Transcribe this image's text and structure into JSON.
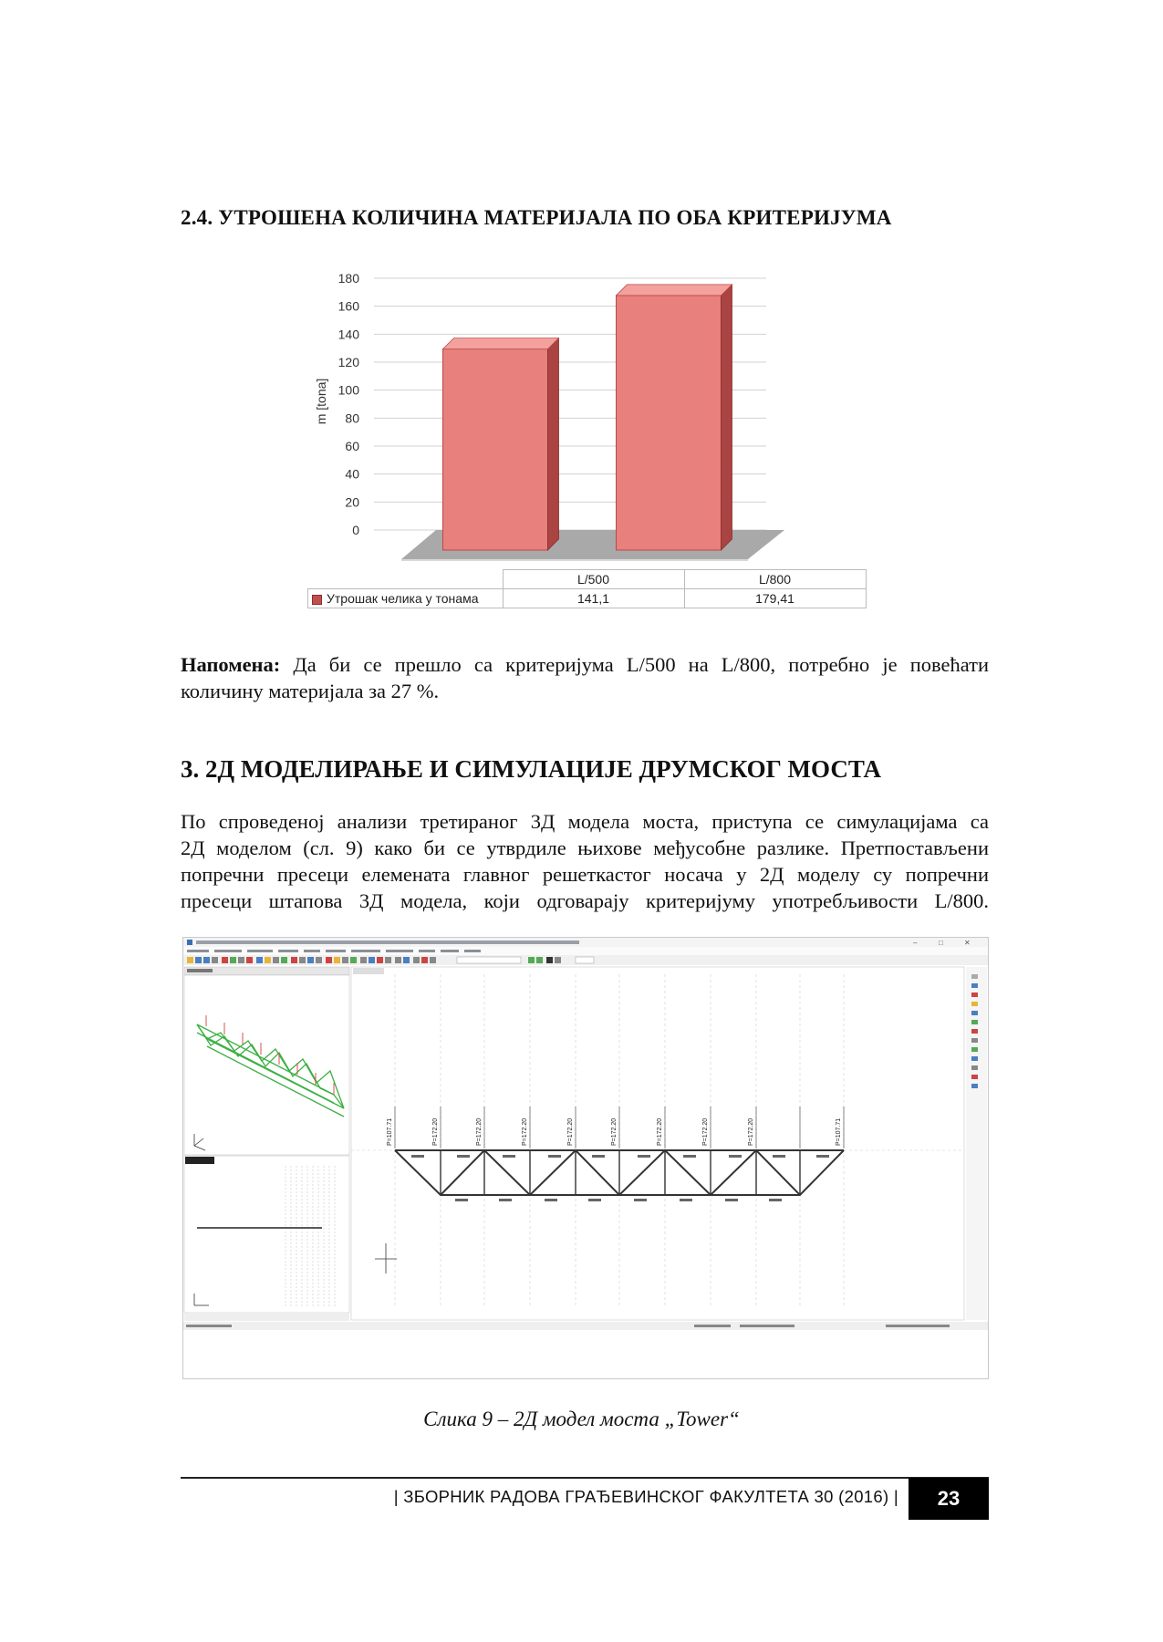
{
  "section_24": {
    "title": "2.4. УТРОШЕНА КОЛИЧИНА МАТЕРИЈАЛА ПО ОБА КРИТЕРИЈУМА"
  },
  "chart_data": {
    "type": "bar",
    "categories": [
      "L/500",
      "L/800"
    ],
    "series": [
      {
        "name": "Утрошак челика у тонама",
        "values": [
          141.1,
          179.41
        ],
        "value_labels": [
          "141,1",
          "179,41"
        ],
        "color": "#c0504d"
      }
    ],
    "ylabel": "m [tona]",
    "ylim": [
      0,
      180
    ],
    "yticks": [
      0,
      20,
      40,
      60,
      80,
      100,
      120,
      140,
      160,
      180
    ],
    "grid": true,
    "legend": "data-table-below"
  },
  "note": {
    "label": "Напомена:",
    "lines": [
      " Да би се прешло са критеријума L/500 на L/800, потребно је повећати",
      "количину материјала за 27 %."
    ]
  },
  "section_3": {
    "title": "3.  2Д МОДЕЛИРАЊЕ И СИМУЛАЦИЈЕ ДРУМСКОГ МОСТА",
    "paragraph_lines": [
      "По спроведеној анализи третираног 3Д модела моста, приступа се симулацијама са",
      "2Д моделом (сл. 9) како би се утврдиле њихове међусобне разлике. Претпостављени",
      "попречни пресеци елемената главног решеткастог носача у 2Д моделу су попречни",
      "пресеци штапова 3Д модела, који одговарају критеријуму употребљивости L/800."
    ]
  },
  "figure": {
    "caption": "Слика 9 – 2Д модел моста „Tower“",
    "screenshot": {
      "force_labels": [
        "P=172.20",
        "P=172.20",
        "P=172.20",
        "P=172.20",
        "P=172.20",
        "P=172.20",
        "P=172.20",
        "P=172.20"
      ],
      "end_labels": [
        "P=107.71",
        "P=107.71"
      ],
      "colors": {
        "truss": "#333333",
        "model3d": "#3cb043",
        "load_arrow": "#d9534f"
      }
    }
  },
  "footer": {
    "text": "| ЗБОРНИК РАДОВА ГРАЂЕВИНСКОГ ФАКУЛТЕТА 30  (2016) |",
    "page": "23"
  }
}
